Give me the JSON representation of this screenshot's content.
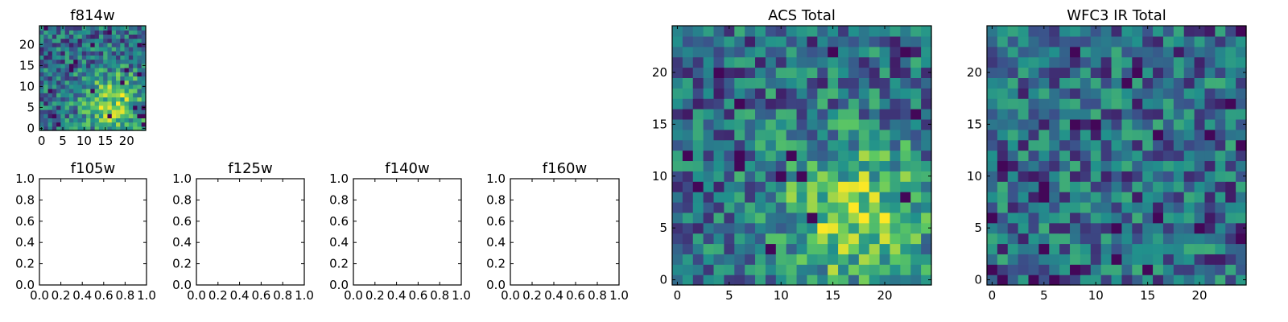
{
  "chart_data": [
    {
      "type": "heatmap",
      "title": "f814w",
      "x_ticks": [
        0,
        5,
        10,
        15,
        20
      ],
      "y_ticks": [
        0,
        5,
        10,
        15,
        20
      ],
      "xlim": [
        -0.5,
        24.5
      ],
      "ylim": [
        -0.5,
        24.5
      ],
      "grid_size": 25,
      "colormap": "viridis",
      "hotspot": {
        "x": 17,
        "y": 6
      }
    },
    {
      "type": "heatmap",
      "title": "f105w",
      "x_ticks": [
        0.0,
        0.2,
        0.4,
        0.6,
        0.8,
        1.0
      ],
      "y_ticks": [
        0.0,
        0.2,
        0.4,
        0.6,
        0.8,
        1.0
      ],
      "tick_labels": [
        "0.0",
        "0.2",
        "0.4",
        "0.6",
        "0.8",
        "1.0"
      ],
      "xlim": [
        0,
        1
      ],
      "ylim": [
        0,
        1
      ],
      "values": []
    },
    {
      "type": "heatmap",
      "title": "f125w",
      "x_ticks": [
        0.0,
        0.2,
        0.4,
        0.6,
        0.8,
        1.0
      ],
      "y_ticks": [
        0.0,
        0.2,
        0.4,
        0.6,
        0.8,
        1.0
      ],
      "tick_labels": [
        "0.0",
        "0.2",
        "0.4",
        "0.6",
        "0.8",
        "1.0"
      ],
      "xlim": [
        0,
        1
      ],
      "ylim": [
        0,
        1
      ],
      "values": []
    },
    {
      "type": "heatmap",
      "title": "f140w",
      "x_ticks": [
        0.0,
        0.2,
        0.4,
        0.6,
        0.8,
        1.0
      ],
      "y_ticks": [
        0.0,
        0.2,
        0.4,
        0.6,
        0.8,
        1.0
      ],
      "tick_labels": [
        "0.0",
        "0.2",
        "0.4",
        "0.6",
        "0.8",
        "1.0"
      ],
      "xlim": [
        0,
        1
      ],
      "ylim": [
        0,
        1
      ],
      "values": []
    },
    {
      "type": "heatmap",
      "title": "f160w",
      "x_ticks": [
        0.0,
        0.2,
        0.4,
        0.6,
        0.8,
        1.0
      ],
      "y_ticks": [
        0.0,
        0.2,
        0.4,
        0.6,
        0.8,
        1.0
      ],
      "tick_labels": [
        "0.0",
        "0.2",
        "0.4",
        "0.6",
        "0.8",
        "1.0"
      ],
      "xlim": [
        0,
        1
      ],
      "ylim": [
        0,
        1
      ],
      "values": []
    },
    {
      "type": "heatmap",
      "title": "ACS Total",
      "x_ticks": [
        0,
        5,
        10,
        15,
        20
      ],
      "y_ticks": [
        0,
        5,
        10,
        15,
        20
      ],
      "xlim": [
        -0.5,
        24.5
      ],
      "ylim": [
        -0.5,
        24.5
      ],
      "grid_size": 25,
      "colormap": "viridis",
      "hotspot": {
        "x": 17,
        "y": 6
      }
    },
    {
      "type": "heatmap",
      "title": "WFC3 IR Total",
      "x_ticks": [
        0,
        5,
        10,
        15,
        20
      ],
      "y_ticks": [
        0,
        5,
        10,
        15,
        20
      ],
      "xlim": [
        -0.5,
        24.5
      ],
      "ylim": [
        -0.5,
        24.5
      ],
      "grid_size": 25,
      "colormap": "viridis",
      "hotspot": null
    }
  ],
  "colors": {
    "viridis": [
      "#440154",
      "#3b528b",
      "#21918c",
      "#5ec962",
      "#fde725"
    ],
    "axis": "#000000",
    "background": "#ffffff"
  }
}
